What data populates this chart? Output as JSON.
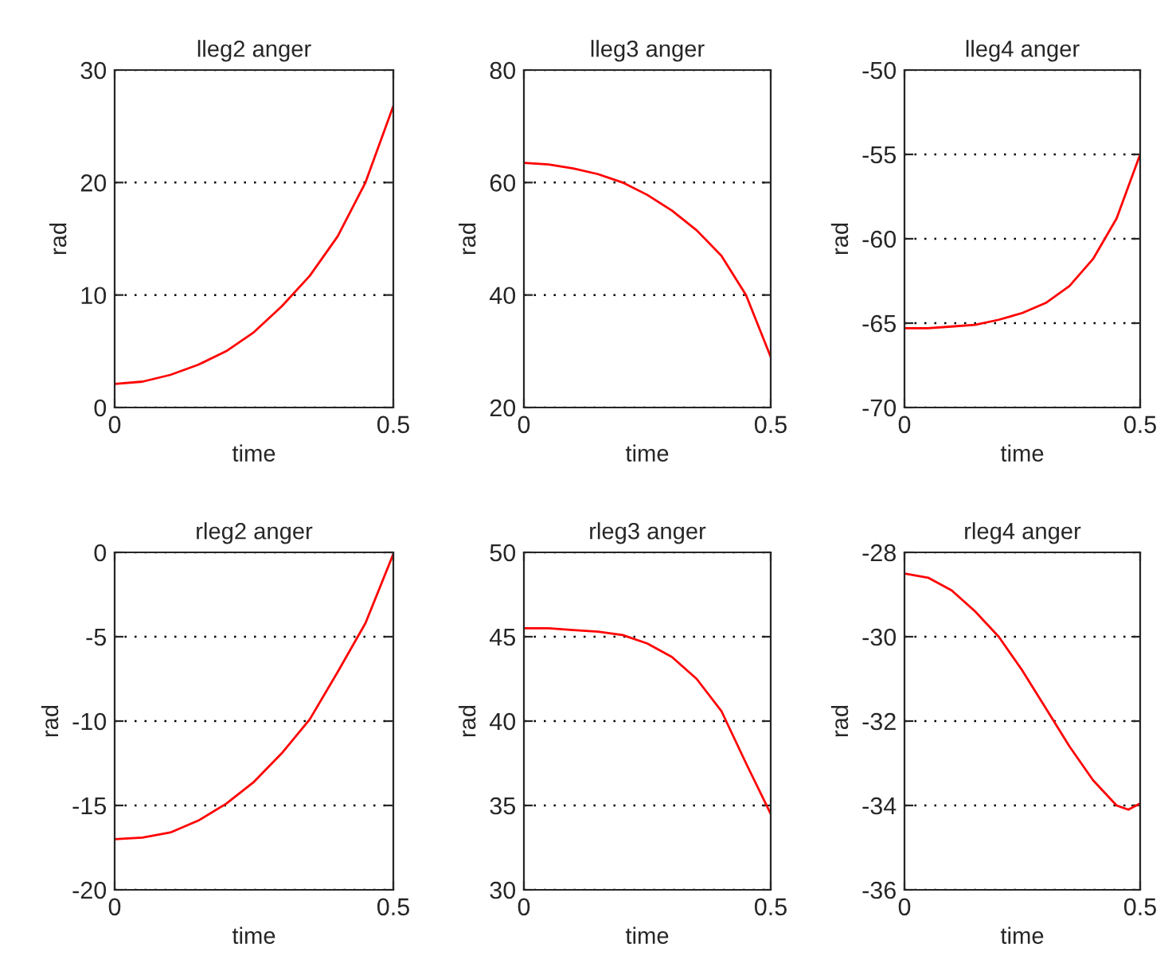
{
  "chart_data": [
    {
      "type": "line",
      "title": "lleg2 anger",
      "xlabel": "time",
      "ylabel": "rad",
      "xlim": [
        0,
        0.5
      ],
      "xticks": [
        0,
        0.5
      ],
      "ylim": [
        0,
        30
      ],
      "yticks": [
        0,
        10,
        20,
        30
      ],
      "grid": "y",
      "x": [
        0,
        0.05,
        0.1,
        0.15,
        0.2,
        0.25,
        0.3,
        0.35,
        0.4,
        0.45,
        0.5
      ],
      "series": [
        {
          "color": "#ff0000",
          "values": [
            2.1,
            2.3,
            2.9,
            3.8,
            5.0,
            6.7,
            9.0,
            11.7,
            15.2,
            20.0,
            26.8
          ]
        }
      ]
    },
    {
      "type": "line",
      "title": "lleg3 anger",
      "xlabel": "time",
      "ylabel": "rad",
      "xlim": [
        0,
        0.5
      ],
      "xticks": [
        0,
        0.5
      ],
      "ylim": [
        20,
        80
      ],
      "yticks": [
        20,
        40,
        60,
        80
      ],
      "grid": "y",
      "x": [
        0,
        0.05,
        0.1,
        0.15,
        0.2,
        0.25,
        0.3,
        0.35,
        0.4,
        0.45,
        0.5
      ],
      "series": [
        {
          "color": "#ff0000",
          "values": [
            63.5,
            63.2,
            62.5,
            61.5,
            60.0,
            57.8,
            55.0,
            51.5,
            47.0,
            40.0,
            29.0
          ]
        }
      ]
    },
    {
      "type": "line",
      "title": "lleg4 anger",
      "xlabel": "time",
      "ylabel": "rad",
      "xlim": [
        0,
        0.5
      ],
      "xticks": [
        0,
        0.5
      ],
      "ylim": [
        -70,
        -50
      ],
      "yticks": [
        -70,
        -65,
        -60,
        -55,
        -50
      ],
      "grid": "y",
      "x": [
        0,
        0.05,
        0.1,
        0.15,
        0.2,
        0.25,
        0.3,
        0.35,
        0.4,
        0.45,
        0.5
      ],
      "series": [
        {
          "color": "#ff0000",
          "values": [
            -65.3,
            -65.3,
            -65.2,
            -65.1,
            -64.8,
            -64.4,
            -63.8,
            -62.8,
            -61.2,
            -58.8,
            -55.0
          ]
        }
      ]
    },
    {
      "type": "line",
      "title": "rleg2 anger",
      "xlabel": "time",
      "ylabel": "rad",
      "xlim": [
        0,
        0.5
      ],
      "xticks": [
        0,
        0.5
      ],
      "ylim": [
        -20,
        0
      ],
      "yticks": [
        -20,
        -15,
        -10,
        -5,
        0
      ],
      "grid": "y",
      "x": [
        0,
        0.05,
        0.1,
        0.15,
        0.2,
        0.25,
        0.3,
        0.35,
        0.4,
        0.45,
        0.5
      ],
      "series": [
        {
          "color": "#ff0000",
          "values": [
            -17.0,
            -16.9,
            -16.6,
            -15.9,
            -14.9,
            -13.6,
            -11.9,
            -9.9,
            -7.1,
            -4.2,
            -0.1
          ]
        }
      ]
    },
    {
      "type": "line",
      "title": "rleg3 anger",
      "xlabel": "time",
      "ylabel": "rad",
      "xlim": [
        0,
        0.5
      ],
      "xticks": [
        0,
        0.5
      ],
      "ylim": [
        30,
        50
      ],
      "yticks": [
        30,
        35,
        40,
        45,
        50
      ],
      "grid": "y",
      "x": [
        0,
        0.05,
        0.1,
        0.15,
        0.2,
        0.25,
        0.3,
        0.35,
        0.4,
        0.45,
        0.5
      ],
      "series": [
        {
          "color": "#ff0000",
          "values": [
            45.5,
            45.5,
            45.4,
            45.3,
            45.1,
            44.6,
            43.8,
            42.5,
            40.6,
            37.5,
            34.5
          ]
        }
      ]
    },
    {
      "type": "line",
      "title": "rleg4 anger",
      "xlabel": "time",
      "ylabel": "rad",
      "xlim": [
        0,
        0.5
      ],
      "xticks": [
        0,
        0.5
      ],
      "ylim": [
        -36,
        -28
      ],
      "yticks": [
        -36,
        -34,
        -32,
        -30,
        -28
      ],
      "grid": "y",
      "x": [
        0,
        0.05,
        0.1,
        0.15,
        0.2,
        0.25,
        0.3,
        0.35,
        0.4,
        0.45,
        0.475,
        0.5
      ],
      "series": [
        {
          "color": "#ff0000",
          "values": [
            -28.5,
            -28.6,
            -28.9,
            -29.4,
            -30.0,
            -30.8,
            -31.7,
            -32.6,
            -33.4,
            -34.0,
            -34.1,
            -33.95
          ]
        }
      ]
    }
  ]
}
